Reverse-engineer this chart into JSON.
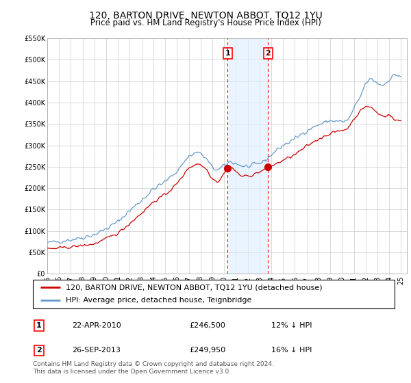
{
  "title": "120, BARTON DRIVE, NEWTON ABBOT, TQ12 1YU",
  "subtitle": "Price paid vs. HM Land Registry's House Price Index (HPI)",
  "ylim": [
    0,
    550000
  ],
  "yticks": [
    0,
    50000,
    100000,
    150000,
    200000,
    250000,
    300000,
    350000,
    400000,
    450000,
    500000,
    550000
  ],
  "ytick_labels": [
    "£0",
    "£50K",
    "£100K",
    "£150K",
    "£200K",
    "£250K",
    "£300K",
    "£350K",
    "£400K",
    "£450K",
    "£500K",
    "£550K"
  ],
  "sale1_date": "22-APR-2010",
  "sale1_price": 246500,
  "sale1_pct": "12% ↓ HPI",
  "sale1_year": 2010.3,
  "sale2_date": "26-SEP-2013",
  "sale2_price": 249950,
  "sale2_pct": "16% ↓ HPI",
  "sale2_year": 2013.73,
  "legend_label1": "120, BARTON DRIVE, NEWTON ABBOT, TQ12 1YU (detached house)",
  "legend_label2": "HPI: Average price, detached house, Teignbridge",
  "footnote": "Contains HM Land Registry data © Crown copyright and database right 2024.\nThis data is licensed under the Open Government Licence v3.0.",
  "line_color_red": "#cc0000",
  "line_color_blue": "#6699cc",
  "shading_color": "#ddeeff",
  "title_fontsize": 10,
  "subtitle_fontsize": 8.5,
  "tick_fontsize": 7,
  "legend_fontsize": 8,
  "footnote_fontsize": 6.5
}
